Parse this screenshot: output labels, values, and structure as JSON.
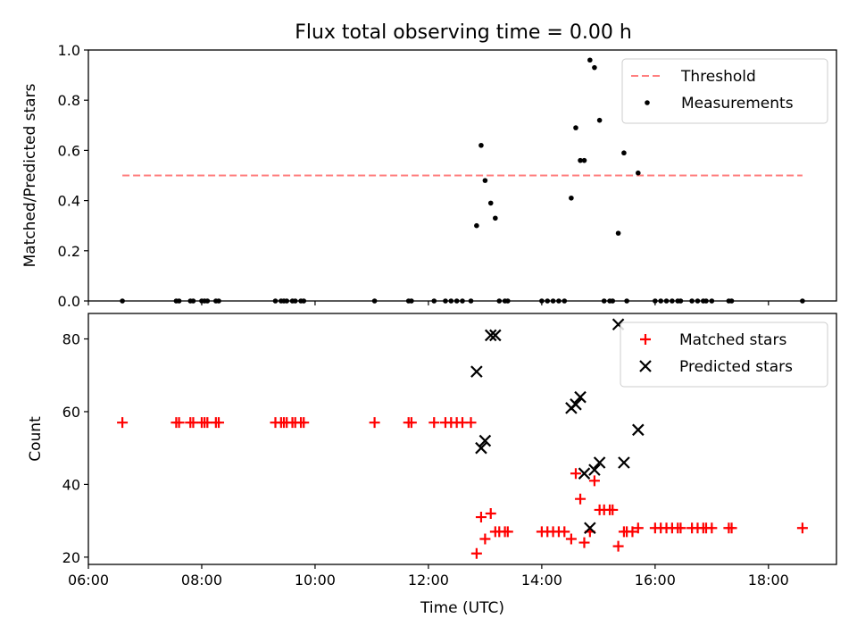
{
  "figure": {
    "title": "Flux total observing time = 0.00 h"
  },
  "chart_data": [
    {
      "type": "scatter",
      "ylabel": "Matched/Predicted stars",
      "xlabel": "",
      "xlim": [
        6.0,
        19.2
      ],
      "ylim": [
        0,
        1.0
      ],
      "yticks": [
        0.0,
        0.2,
        0.4,
        0.6,
        0.8,
        1.0
      ],
      "ytick_labels": [
        "0.0",
        "0.2",
        "0.4",
        "0.6",
        "0.8",
        "1.0"
      ],
      "xticks": [
        6,
        8,
        10,
        12,
        14,
        16,
        18
      ],
      "grid": false,
      "legend_position": "top-right",
      "threshold": {
        "name": "Threshold",
        "x": [
          6.6,
          18.6
        ],
        "y": 0.5,
        "color": "#ff7f7f"
      },
      "series": [
        {
          "name": "Measurements",
          "color": "#000000",
          "marker": "dot",
          "points": [
            [
              6.6,
              0
            ],
            [
              7.55,
              0
            ],
            [
              7.6,
              0
            ],
            [
              7.8,
              0
            ],
            [
              7.85,
              0
            ],
            [
              8.0,
              0
            ],
            [
              8.05,
              0
            ],
            [
              8.1,
              0
            ],
            [
              8.25,
              0
            ],
            [
              8.3,
              0
            ],
            [
              9.3,
              0
            ],
            [
              9.4,
              0
            ],
            [
              9.45,
              0
            ],
            [
              9.5,
              0
            ],
            [
              9.6,
              0
            ],
            [
              9.65,
              0
            ],
            [
              9.75,
              0
            ],
            [
              9.8,
              0
            ],
            [
              11.05,
              0
            ],
            [
              11.65,
              0
            ],
            [
              11.7,
              0
            ],
            [
              12.1,
              0
            ],
            [
              12.3,
              0
            ],
            [
              12.4,
              0
            ],
            [
              12.5,
              0
            ],
            [
              12.6,
              0
            ],
            [
              12.75,
              0
            ],
            [
              12.85,
              0.3
            ],
            [
              12.93,
              0.62
            ],
            [
              13.0,
              0.48
            ],
            [
              13.1,
              0.39
            ],
            [
              13.18,
              0.33
            ],
            [
              13.25,
              0
            ],
            [
              13.35,
              0
            ],
            [
              13.4,
              0
            ],
            [
              14.0,
              0
            ],
            [
              14.1,
              0
            ],
            [
              14.2,
              0
            ],
            [
              14.3,
              0
            ],
            [
              14.4,
              0
            ],
            [
              14.52,
              0.41
            ],
            [
              14.6,
              0.69
            ],
            [
              14.68,
              0.56
            ],
            [
              14.75,
              0.56
            ],
            [
              14.85,
              0.96
            ],
            [
              14.93,
              0.93
            ],
            [
              15.02,
              0.72
            ],
            [
              15.1,
              0
            ],
            [
              15.2,
              0
            ],
            [
              15.25,
              0
            ],
            [
              15.35,
              0.27
            ],
            [
              15.45,
              0.59
            ],
            [
              15.5,
              0
            ],
            [
              15.7,
              0.51
            ],
            [
              16.0,
              0
            ],
            [
              16.1,
              0
            ],
            [
              16.2,
              0
            ],
            [
              16.3,
              0
            ],
            [
              16.4,
              0
            ],
            [
              16.45,
              0
            ],
            [
              16.65,
              0
            ],
            [
              16.75,
              0
            ],
            [
              16.85,
              0
            ],
            [
              16.9,
              0
            ],
            [
              17.0,
              0
            ],
            [
              17.3,
              0
            ],
            [
              17.35,
              0
            ],
            [
              18.6,
              0
            ]
          ]
        }
      ]
    },
    {
      "type": "scatter",
      "xlabel": "Time (UTC)",
      "ylabel": "Count",
      "xlim": [
        6.0,
        19.2
      ],
      "ylim": [
        18,
        87
      ],
      "yticks": [
        20,
        40,
        60,
        80
      ],
      "ytick_labels": [
        "20",
        "40",
        "60",
        "80"
      ],
      "xticks": [
        6,
        8,
        10,
        12,
        14,
        16,
        18
      ],
      "xtick_labels": [
        "06:00",
        "08:00",
        "10:00",
        "12:00",
        "14:00",
        "16:00",
        "18:00"
      ],
      "grid": false,
      "legend_position": "top-right",
      "series": [
        {
          "name": "Matched stars",
          "color": "#ff0000",
          "marker": "plus",
          "points": [
            [
              6.6,
              57
            ],
            [
              7.55,
              57
            ],
            [
              7.6,
              57
            ],
            [
              7.8,
              57
            ],
            [
              7.85,
              57
            ],
            [
              8.0,
              57
            ],
            [
              8.05,
              57
            ],
            [
              8.1,
              57
            ],
            [
              8.25,
              57
            ],
            [
              8.3,
              57
            ],
            [
              9.3,
              57
            ],
            [
              9.4,
              57
            ],
            [
              9.45,
              57
            ],
            [
              9.5,
              57
            ],
            [
              9.6,
              57
            ],
            [
              9.65,
              57
            ],
            [
              9.75,
              57
            ],
            [
              9.8,
              57
            ],
            [
              11.05,
              57
            ],
            [
              11.65,
              57
            ],
            [
              11.7,
              57
            ],
            [
              12.1,
              57
            ],
            [
              12.3,
              57
            ],
            [
              12.4,
              57
            ],
            [
              12.5,
              57
            ],
            [
              12.6,
              57
            ],
            [
              12.75,
              57
            ],
            [
              12.85,
              21
            ],
            [
              12.93,
              31
            ],
            [
              13.0,
              25
            ],
            [
              13.1,
              32
            ],
            [
              13.18,
              27
            ],
            [
              13.25,
              27
            ],
            [
              13.35,
              27
            ],
            [
              13.4,
              27
            ],
            [
              14.0,
              27
            ],
            [
              14.1,
              27
            ],
            [
              14.2,
              27
            ],
            [
              14.3,
              27
            ],
            [
              14.4,
              27
            ],
            [
              14.52,
              25
            ],
            [
              14.6,
              43
            ],
            [
              14.68,
              36
            ],
            [
              14.75,
              24
            ],
            [
              14.85,
              27
            ],
            [
              14.93,
              41
            ],
            [
              15.02,
              33
            ],
            [
              15.1,
              33
            ],
            [
              15.2,
              33
            ],
            [
              15.25,
              33
            ],
            [
              15.35,
              23
            ],
            [
              15.45,
              27
            ],
            [
              15.5,
              27
            ],
            [
              15.6,
              27
            ],
            [
              15.7,
              28
            ],
            [
              16.0,
              28
            ],
            [
              16.1,
              28
            ],
            [
              16.2,
              28
            ],
            [
              16.3,
              28
            ],
            [
              16.4,
              28
            ],
            [
              16.45,
              28
            ],
            [
              16.65,
              28
            ],
            [
              16.75,
              28
            ],
            [
              16.85,
              28
            ],
            [
              16.9,
              28
            ],
            [
              17.0,
              28
            ],
            [
              17.3,
              28
            ],
            [
              17.35,
              28
            ],
            [
              18.6,
              28
            ]
          ]
        },
        {
          "name": "Predicted stars",
          "color": "#000000",
          "marker": "cross",
          "points": [
            [
              12.85,
              71
            ],
            [
              12.93,
              50
            ],
            [
              13.0,
              52
            ],
            [
              13.1,
              81
            ],
            [
              13.18,
              81
            ],
            [
              14.52,
              61
            ],
            [
              14.6,
              62
            ],
            [
              14.68,
              64
            ],
            [
              14.75,
              43
            ],
            [
              14.85,
              28
            ],
            [
              14.93,
              44
            ],
            [
              15.02,
              46
            ],
            [
              15.35,
              84
            ],
            [
              15.45,
              46
            ],
            [
              15.7,
              55
            ]
          ]
        }
      ]
    }
  ]
}
